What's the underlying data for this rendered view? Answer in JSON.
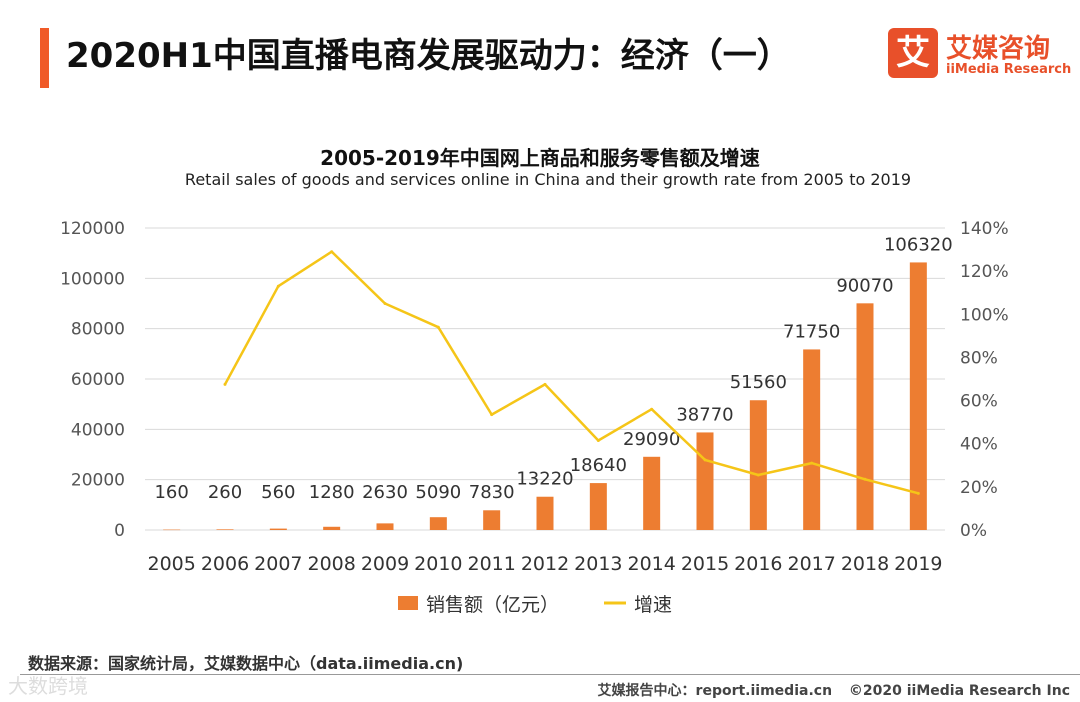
{
  "header": {
    "title": "2020H1中国直播电商发展驱动力：经济（一）",
    "logo_mark": "艾",
    "logo_cn": "艾媒咨询",
    "logo_en": "iiMedia Research"
  },
  "colors": {
    "accent": "#f05a28",
    "bar": "#ed7d31",
    "line": "#f5c518"
  },
  "chart_data": {
    "type": "bar",
    "title": "2005-2019年中国网上商品和服务零售额及增速",
    "subtitle": "Retail sales of goods and services online in China and their growth rate from 2005 to 2019",
    "categories": [
      "2005",
      "2006",
      "2007",
      "2008",
      "2009",
      "2010",
      "2011",
      "2012",
      "2013",
      "2014",
      "2015",
      "2016",
      "2017",
      "2018",
      "2019"
    ],
    "series": [
      {
        "name": "销售额（亿元）",
        "type": "bar",
        "axis": "left",
        "values": [
          160,
          260,
          560,
          1280,
          2630,
          5090,
          7830,
          13220,
          18640,
          29090,
          38770,
          51560,
          71750,
          90070,
          106320
        ],
        "labels": [
          "160",
          "260",
          "560",
          "1280",
          "2630",
          "5090",
          "7830",
          "13220",
          "18640",
          "29090",
          "38770",
          "51560",
          "71750",
          "90070",
          "106320"
        ]
      },
      {
        "name": "增速",
        "type": "line",
        "axis": "right",
        "values": [
          null,
          67.5,
          113,
          129,
          105,
          94,
          53.5,
          67.5,
          41.5,
          56,
          32.5,
          25.5,
          31,
          23.5,
          17
        ]
      }
    ],
    "ylim_left": [
      0,
      120000
    ],
    "ylim_right": [
      0,
      140
    ],
    "yticks_left": [
      "0",
      "20000",
      "40000",
      "60000",
      "80000",
      "100000",
      "120000"
    ],
    "yticks_right": [
      "0%",
      "20%",
      "40%",
      "60%",
      "80%",
      "100%",
      "120%",
      "140%"
    ],
    "grid": true,
    "legend": "bottom"
  },
  "footer": {
    "source": "数据来源：国家统计局，艾媒数据中心（data.iimedia.cn)",
    "watermark": "大数跨境",
    "report": "艾媒报告中心：report.iimedia.cn",
    "copyright": "©2020  iiMedia Research  Inc"
  }
}
